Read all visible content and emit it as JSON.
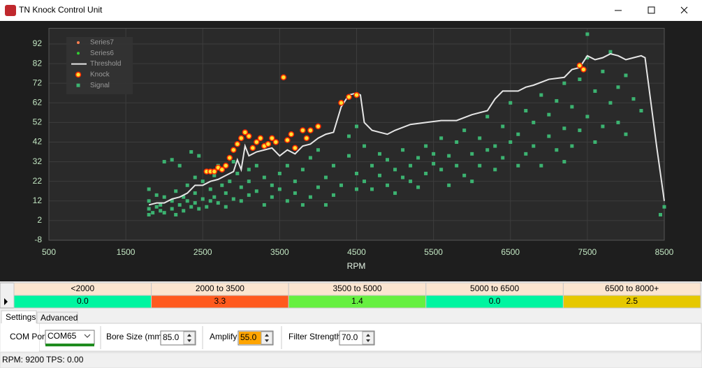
{
  "window": {
    "title": "TN Knock Control Unit"
  },
  "chart_data": {
    "type": "scatter",
    "x_label": "RPM",
    "xlim": [
      500,
      8500
    ],
    "xticks": [
      500,
      1500,
      2500,
      3500,
      4500,
      5500,
      6500,
      7500,
      8500
    ],
    "ylim": [
      -8,
      100
    ],
    "yticks": [
      -8,
      2,
      12,
      22,
      32,
      42,
      52,
      62,
      72,
      82,
      92
    ],
    "grid": true,
    "legend": "upper left",
    "series": [
      {
        "name": "Series7",
        "color": "#ff7f50",
        "style": "dot",
        "x": [],
        "values": []
      },
      {
        "name": "Series6",
        "color": "#32cd32",
        "style": "dot",
        "x": [],
        "values": []
      },
      {
        "name": "Threshold",
        "color": "#e6e6e6",
        "style": "line",
        "x": [
          1800,
          1900,
          2000,
          2100,
          2200,
          2300,
          2400,
          2500,
          2600,
          2700,
          2800,
          2900,
          2950,
          3000,
          3050,
          3100,
          3200,
          3300,
          3400,
          3500,
          3600,
          3700,
          3800,
          3900,
          4000,
          4100,
          4200,
          4300,
          4400,
          4500,
          4550,
          4600,
          4700,
          4800,
          4900,
          5000,
          5200,
          5400,
          5600,
          5800,
          6000,
          6200,
          6300,
          6400,
          6500,
          6600,
          6700,
          6800,
          7000,
          7200,
          7300,
          7400,
          7500,
          7600,
          7700,
          7800,
          7900,
          8000,
          8100,
          8200,
          8250,
          8300,
          8400,
          8500
        ],
        "values": [
          10,
          11,
          11,
          13,
          14,
          16,
          20,
          20,
          22,
          23,
          25,
          27,
          33,
          28,
          40,
          35,
          37,
          38,
          39,
          35,
          38,
          36,
          40,
          41,
          44,
          46,
          47,
          60,
          66,
          67,
          66,
          52,
          48,
          47,
          46,
          48,
          51,
          52,
          53,
          53,
          56,
          58,
          64,
          68,
          68,
          68,
          70,
          71,
          74,
          75,
          79,
          80,
          86,
          84,
          85,
          87,
          86,
          84,
          85,
          86,
          85,
          70,
          40,
          12
        ]
      },
      {
        "name": "Knock",
        "color": "#ff2a00",
        "style": "star",
        "x": [
          2550,
          2600,
          2650,
          2700,
          2750,
          2800,
          2850,
          2900,
          2950,
          3000,
          3050,
          3100,
          3150,
          3200,
          3250,
          3300,
          3350,
          3400,
          3450,
          3550,
          3600,
          3650,
          3700,
          3800,
          3850,
          3900,
          4000,
          4300,
          4400,
          4500,
          7400,
          7450
        ],
        "values": [
          27,
          27,
          27,
          29,
          28,
          30,
          34,
          38,
          41,
          44,
          47,
          45,
          39,
          42,
          44,
          40,
          41,
          44,
          42,
          75,
          43,
          46,
          39,
          48,
          44,
          48,
          50,
          62,
          65,
          66,
          81,
          79
        ]
      },
      {
        "name": "Signal",
        "color": "#3cb371",
        "style": "square",
        "x": [
          1800,
          1800,
          1800,
          1800,
          1850,
          1900,
          1900,
          1950,
          1950,
          2000,
          2000,
          2000,
          2100,
          2100,
          2100,
          2150,
          2150,
          2200,
          2200,
          2250,
          2250,
          2300,
          2300,
          2350,
          2350,
          2400,
          2400,
          2400,
          2450,
          2450,
          2500,
          2500,
          2550,
          2600,
          2600,
          2650,
          2650,
          2700,
          2700,
          2750,
          2800,
          2800,
          2850,
          2900,
          2900,
          2950,
          3000,
          3000,
          3100,
          3100,
          3100,
          3200,
          3200,
          3300,
          3300,
          3400,
          3400,
          3500,
          3500,
          3600,
          3600,
          3700,
          3700,
          3800,
          3800,
          3900,
          3900,
          4000,
          4000,
          4100,
          4100,
          4200,
          4200,
          4300,
          4400,
          4400,
          4500,
          4500,
          4500,
          4600,
          4600,
          4700,
          4700,
          4800,
          4800,
          4900,
          4900,
          5000,
          5000,
          5100,
          5100,
          5200,
          5200,
          5300,
          5300,
          5400,
          5400,
          5500,
          5500,
          5600,
          5600,
          5700,
          5700,
          5800,
          5800,
          5900,
          5900,
          6000,
          6000,
          6100,
          6100,
          6200,
          6200,
          6300,
          6300,
          6400,
          6400,
          6500,
          6500,
          6600,
          6600,
          6700,
          6700,
          6800,
          6800,
          6900,
          6900,
          7000,
          7000,
          7100,
          7100,
          7200,
          7200,
          7200,
          7300,
          7300,
          7400,
          7400,
          7500,
          7500,
          7600,
          7600,
          7700,
          7700,
          7800,
          7800,
          7900,
          7900,
          8000,
          8000,
          8100,
          8200,
          8450,
          8500,
          7500
        ],
        "values": [
          8,
          18,
          5,
          12,
          6,
          9,
          15,
          7,
          10,
          32,
          14,
          6,
          8,
          33,
          12,
          17,
          5,
          10,
          30,
          14,
          7,
          12,
          20,
          37,
          9,
          16,
          11,
          24,
          8,
          35,
          13,
          22,
          9,
          18,
          12,
          25,
          14,
          11,
          30,
          20,
          16,
          9,
          22,
          13,
          32,
          26,
          19,
          12,
          22,
          28,
          15,
          17,
          30,
          10,
          24,
          20,
          14,
          26,
          18,
          12,
          30,
          22,
          16,
          28,
          10,
          14,
          34,
          19,
          38,
          24,
          10,
          30,
          15,
          20,
          35,
          45,
          26,
          50,
          18,
          22,
          40,
          30,
          18,
          25,
          36,
          20,
          33,
          28,
          16,
          38,
          24,
          22,
          30,
          34,
          19,
          40,
          26,
          31,
          36,
          28,
          44,
          20,
          35,
          42,
          30,
          48,
          25,
          36,
          22,
          44,
          30,
          55,
          38,
          40,
          28,
          50,
          34,
          62,
          42,
          46,
          30,
          58,
          36,
          52,
          40,
          66,
          30,
          56,
          45,
          63,
          38,
          49,
          72,
          32,
          60,
          40,
          74,
          48,
          55,
          85,
          68,
          42,
          78,
          50,
          62,
          88,
          70,
          52,
          76,
          46,
          64,
          58,
          5,
          9,
          97
        ]
      }
    ]
  },
  "knock_table": {
    "headers": [
      "<2000",
      "2000 to 3500",
      "3500 to 5000",
      "5000 to 6500",
      "6500 to 8000+"
    ],
    "values": [
      "0.0",
      "3.3",
      "1.4",
      "0.0",
      "2.5"
    ],
    "colors": [
      "#00f5a0",
      "#ff5a1e",
      "#66f040",
      "#00f5a0",
      "#e6c800"
    ]
  },
  "tabs": [
    "Settings",
    "Advanced"
  ],
  "settings": {
    "com_port_label": "COM Port",
    "com_port": "COM65",
    "bore_label": "Bore Size (mm):",
    "bore": "85.0",
    "amplify_label": "Amplify:",
    "amplify": "55.0",
    "filter_label": "Filter Strength:",
    "filter": "70.0"
  },
  "status": {
    "rpm": "RPM: 9200",
    "tps": "TPS: 0.00"
  }
}
